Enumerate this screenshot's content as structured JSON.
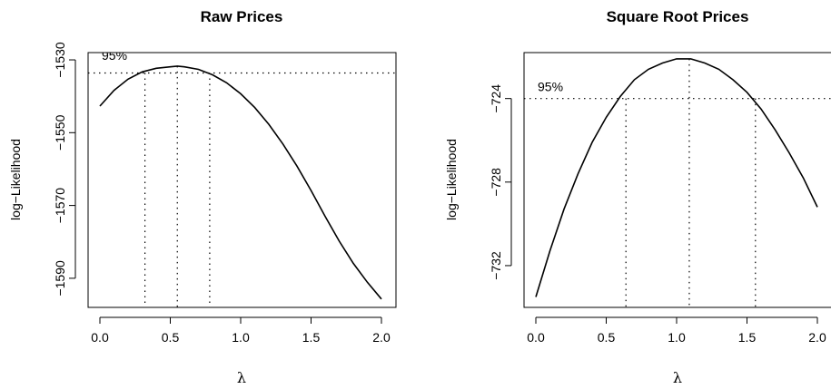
{
  "chart_data": [
    {
      "type": "line",
      "title": "Raw Prices",
      "xlabel": "λ",
      "ylabel": "log−Likelihood",
      "xlim": [
        0,
        2
      ],
      "ylim": [
        -1598,
        -1528
      ],
      "x_ticks": [
        0.0,
        0.5,
        1.0,
        1.5,
        2.0
      ],
      "x_tick_labels": [
        "0.0",
        "0.5",
        "1.0",
        "1.5",
        "2.0"
      ],
      "y_ticks": [
        -1590,
        -1570,
        -1550,
        -1530
      ],
      "y_tick_labels": [
        "−1590",
        "−1570",
        "−1550",
        "−1530"
      ],
      "grid": false,
      "series": [
        {
          "x": [
            0.0,
            0.1,
            0.2,
            0.3,
            0.4,
            0.5,
            0.55,
            0.6,
            0.7,
            0.8,
            0.9,
            1.0,
            1.1,
            1.2,
            1.3,
            1.4,
            1.5,
            1.6,
            1.7,
            1.8,
            1.9,
            2.0
          ],
          "values": [
            -1542.7,
            -1538.4,
            -1535.3,
            -1533.3,
            -1532.3,
            -1531.9,
            -1531.7,
            -1531.9,
            -1532.6,
            -1534.1,
            -1536.3,
            -1539.3,
            -1543.1,
            -1547.7,
            -1553.1,
            -1559.2,
            -1565.9,
            -1573.0,
            -1579.8,
            -1585.9,
            -1591.1,
            -1595.7
          ]
        }
      ],
      "ci_threshold": -1533.6,
      "ci_label": "95%",
      "ci_bounds": [
        0.32,
        0.78
      ],
      "lambda_hat": 0.55
    },
    {
      "type": "line",
      "title": "Square Root Prices",
      "xlabel": "λ",
      "ylabel": "log−Likelihood",
      "xlim": [
        0,
        2
      ],
      "ylim": [
        -734.0,
        -721.8
      ],
      "x_ticks": [
        0.0,
        0.5,
        1.0,
        1.5,
        2.0
      ],
      "x_tick_labels": [
        "0.0",
        "0.5",
        "1.0",
        "1.5",
        "2.0"
      ],
      "y_ticks": [
        -732,
        -728,
        -724
      ],
      "y_tick_labels": [
        "−732",
        "−728",
        "−724"
      ],
      "grid": false,
      "series": [
        {
          "x": [
            0.0,
            0.1,
            0.2,
            0.3,
            0.4,
            0.5,
            0.6,
            0.7,
            0.8,
            0.9,
            1.0,
            1.1,
            1.2,
            1.3,
            1.4,
            1.5,
            1.6,
            1.7,
            1.8,
            1.9,
            2.0
          ],
          "values": [
            -733.5,
            -731.3,
            -729.3,
            -727.6,
            -726.1,
            -724.9,
            -723.9,
            -723.1,
            -722.6,
            -722.3,
            -722.1,
            -722.1,
            -722.3,
            -722.6,
            -723.1,
            -723.7,
            -724.5,
            -725.5,
            -726.6,
            -727.8,
            -729.2
          ]
        }
      ],
      "ci_threshold": -724.0,
      "ci_label": "95%",
      "ci_bounds": [
        0.64,
        1.56
      ],
      "lambda_hat": 1.09
    }
  ]
}
